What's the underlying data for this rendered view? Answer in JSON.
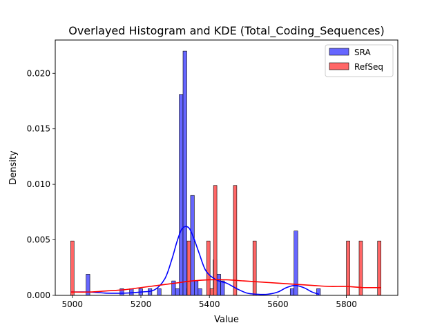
{
  "chart_data": {
    "type": "histogram+kde",
    "title": "Overlayed Histogram and KDE (Total_Coding_Sequences)",
    "xlabel": "Value",
    "ylabel": "Density",
    "xlim": [
      4950,
      5950
    ],
    "ylim": [
      0,
      0.023
    ],
    "xticks": [
      5000,
      5200,
      5400,
      5600,
      5800
    ],
    "xtick_labels": [
      "5000",
      "5200",
      "5400",
      "5600",
      "5800"
    ],
    "yticks": [
      0,
      0.005,
      0.01,
      0.015,
      0.02
    ],
    "ytick_labels": [
      "0.000",
      "0.005",
      "0.010",
      "0.015",
      "0.020"
    ],
    "grid": false,
    "legend": {
      "placement": "top-right",
      "entries": [
        "SRA",
        "RefSeq"
      ]
    },
    "series": [
      {
        "name": "SRA",
        "color": "#0000ff",
        "bar_fill": "#6666ff",
        "bins": [
          {
            "x0": 5040,
            "x1": 5051,
            "value": 0.0019
          },
          {
            "x0": 5139,
            "x1": 5150,
            "value": 0.0006
          },
          {
            "x0": 5167,
            "x1": 5178,
            "value": 0.0006
          },
          {
            "x0": 5194,
            "x1": 5205,
            "value": 0.0006
          },
          {
            "x0": 5221,
            "x1": 5232,
            "value": 0.0006
          },
          {
            "x0": 5248,
            "x1": 5259,
            "value": 0.0006
          },
          {
            "x0": 5290,
            "x1": 5301,
            "value": 0.0013
          },
          {
            "x0": 5301,
            "x1": 5312,
            "value": 0.0006
          },
          {
            "x0": 5312,
            "x1": 5323,
            "value": 0.0181
          },
          {
            "x0": 5323,
            "x1": 5334,
            "value": 0.022
          },
          {
            "x0": 5334,
            "x1": 5345,
            "value": 0.0006
          },
          {
            "x0": 5345,
            "x1": 5356,
            "value": 0.009
          },
          {
            "x0": 5356,
            "x1": 5367,
            "value": 0.0013
          },
          {
            "x0": 5367,
            "x1": 5378,
            "value": 0.0006
          },
          {
            "x0": 5400,
            "x1": 5411,
            "value": 0.0006
          },
          {
            "x0": 5411,
            "x1": 5422,
            "value": 0.0032
          },
          {
            "x0": 5422,
            "x1": 5433,
            "value": 0.0019
          },
          {
            "x0": 5433,
            "x1": 5444,
            "value": 0.0013
          },
          {
            "x0": 5636,
            "x1": 5647,
            "value": 0.0006
          },
          {
            "x0": 5647,
            "x1": 5658,
            "value": 0.0058
          },
          {
            "x0": 5713,
            "x1": 5724,
            "value": 0.0006
          }
        ],
        "kde": {
          "x": [
            4995,
            5050,
            5100,
            5150,
            5200,
            5240,
            5270,
            5290,
            5305,
            5318,
            5330,
            5342,
            5355,
            5370,
            5390,
            5420,
            5450,
            5480,
            5510,
            5540,
            5570,
            5600,
            5625,
            5650,
            5675,
            5700,
            5720
          ],
          "y": [
            0.0003,
            0.0003,
            0.0002,
            0.0002,
            0.0003,
            0.0005,
            0.0015,
            0.0032,
            0.0048,
            0.0059,
            0.0062,
            0.006,
            0.0051,
            0.0038,
            0.0022,
            0.0014,
            0.0011,
            0.0006,
            0.0002,
            0.0001,
            0.0001,
            0.0003,
            0.0007,
            0.0009,
            0.0007,
            0.0003,
            0.0001
          ]
        }
      },
      {
        "name": "RefSeq",
        "color": "#ff0000",
        "bar_fill": "#ff6666",
        "bins": [
          {
            "x0": 4995,
            "x1": 5005,
            "value": 0.0049
          },
          {
            "x0": 5335,
            "x1": 5345,
            "value": 0.0049
          },
          {
            "x0": 5392,
            "x1": 5402,
            "value": 0.0049
          },
          {
            "x0": 5402,
            "x1": 5412,
            "value": 0.0006
          },
          {
            "x0": 5412,
            "x1": 5422,
            "value": 0.0099
          },
          {
            "x0": 5470,
            "x1": 5480,
            "value": 0.0099
          },
          {
            "x0": 5527,
            "x1": 5537,
            "value": 0.0049
          },
          {
            "x0": 5800,
            "x1": 5810,
            "value": 0.0049
          },
          {
            "x0": 5837,
            "x1": 5847,
            "value": 0.0049
          },
          {
            "x0": 5891,
            "x1": 5901,
            "value": 0.0049
          }
        ],
        "kde": {
          "x": [
            4995,
            5050,
            5100,
            5150,
            5200,
            5250,
            5300,
            5350,
            5400,
            5450,
            5500,
            5550,
            5600,
            5650,
            5700,
            5750,
            5800,
            5850,
            5901
          ],
          "y": [
            0.0003,
            0.0003,
            0.0004,
            0.0005,
            0.0007,
            0.0009,
            0.0011,
            0.0013,
            0.0014,
            0.0014,
            0.0013,
            0.0012,
            0.0011,
            0.001,
            0.0009,
            0.0008,
            0.0008,
            0.0007,
            0.0007
          ]
        }
      }
    ]
  }
}
